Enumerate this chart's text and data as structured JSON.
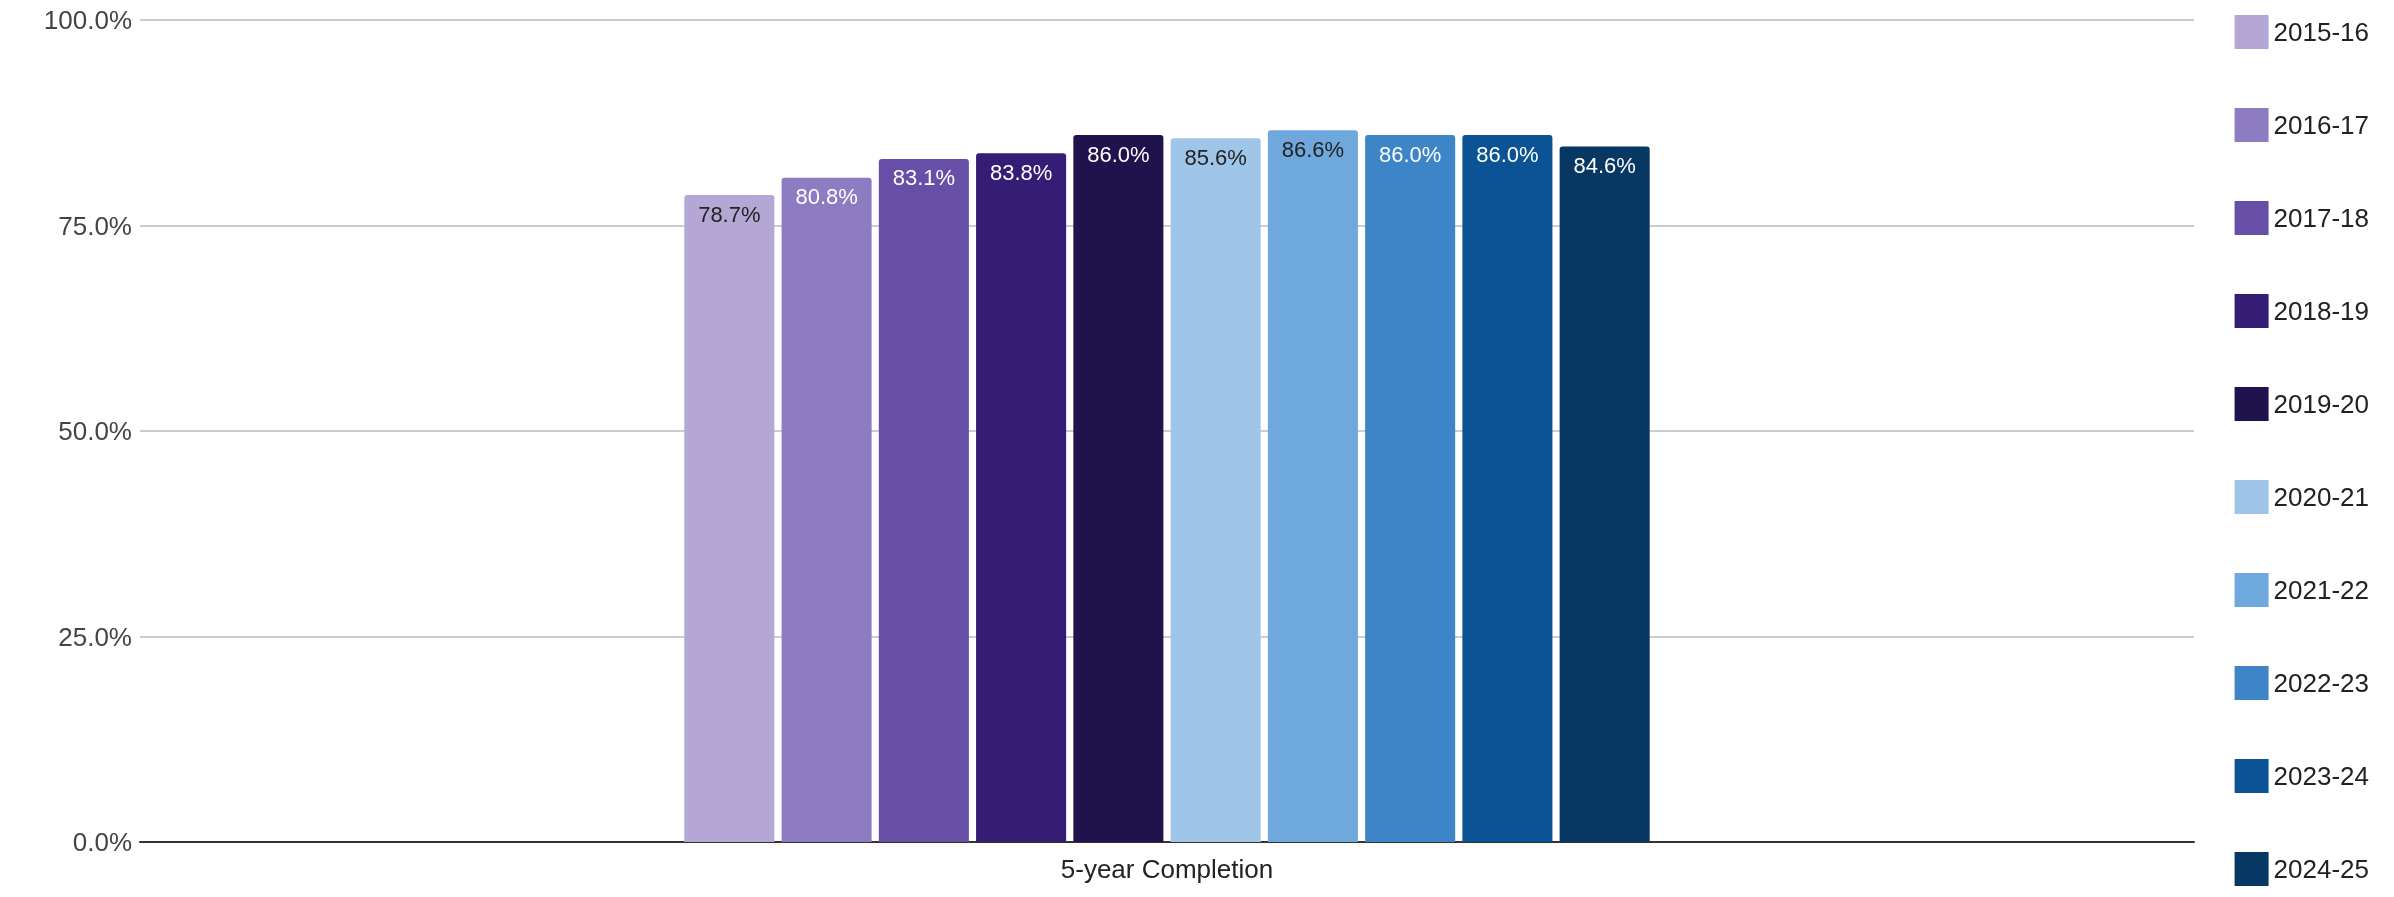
{
  "chart_data": {
    "type": "bar",
    "categories": [
      "5-year Completion"
    ],
    "series": [
      {
        "name": "2015-16",
        "color": "#b4a7d6",
        "values": [
          78.7
        ],
        "value_labels": [
          "78.7%"
        ]
      },
      {
        "name": "2016-17",
        "color": "#8e7cc3",
        "values": [
          80.8
        ],
        "value_labels": [
          "80.8%"
        ]
      },
      {
        "name": "2017-18",
        "color": "#674ea7",
        "values": [
          83.1
        ],
        "value_labels": [
          "83.1%"
        ]
      },
      {
        "name": "2018-19",
        "color": "#351c75",
        "values": [
          83.8
        ],
        "value_labels": [
          "83.8%"
        ]
      },
      {
        "name": "2019-20",
        "color": "#20124d",
        "values": [
          86.0
        ],
        "value_labels": [
          "86.0%"
        ]
      },
      {
        "name": "2020-21",
        "color": "#9fc5e8",
        "values": [
          85.6
        ],
        "value_labels": [
          "85.6%"
        ]
      },
      {
        "name": "2021-22",
        "color": "#6fa8dc",
        "values": [
          86.6
        ],
        "value_labels": [
          "86.6%"
        ]
      },
      {
        "name": "2022-23",
        "color": "#3d85c6",
        "values": [
          86.0
        ],
        "value_labels": [
          "86.0%"
        ]
      },
      {
        "name": "2023-24",
        "color": "#0b5394",
        "values": [
          86.0
        ],
        "value_labels": [
          "86.0%"
        ]
      },
      {
        "name": "2024-25",
        "color": "#073763",
        "values": [
          84.6
        ],
        "value_labels": [
          "84.6%"
        ]
      }
    ],
    "ylim": [
      0,
      100
    ],
    "yticks": [
      {
        "value": 0,
        "label": "0.0%"
      },
      {
        "value": 25,
        "label": "25.0%"
      },
      {
        "value": 50,
        "label": "50.0%"
      },
      {
        "value": 75,
        "label": "75.0%"
      },
      {
        "value": 100,
        "label": "100.0%"
      }
    ],
    "grid": "y",
    "legend": "right"
  }
}
